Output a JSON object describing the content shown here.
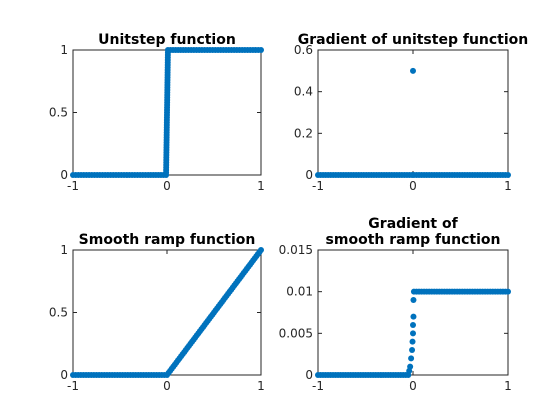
{
  "colors": {
    "series": "#0072BD",
    "axis": "#262626",
    "title": "#000000"
  },
  "chart_data": [
    {
      "id": "unitstep",
      "type": "scatter",
      "title_lines": [
        "Unitstep function"
      ],
      "xlim": [
        -1,
        1
      ],
      "ylim": [
        0,
        1
      ],
      "xticks": [
        -1,
        0,
        1
      ],
      "xtick_labels": [
        "-1",
        "0",
        "1"
      ],
      "yticks": [
        0,
        0.5,
        1
      ],
      "ytick_labels": [
        "0",
        "0.5",
        "1"
      ],
      "grid": false,
      "x": [
        -1,
        -0.8,
        -0.6,
        -0.4,
        -0.2,
        -0.01,
        0,
        0.01,
        0.2,
        0.4,
        0.6,
        0.8,
        1
      ],
      "y": [
        0,
        0,
        0,
        0,
        0,
        0,
        0.5,
        1,
        1,
        1,
        1,
        1,
        1
      ]
    },
    {
      "id": "unitstep-gradient",
      "type": "scatter",
      "title_lines": [
        "Gradient of unitstep function"
      ],
      "xlim": [
        -1,
        1
      ],
      "ylim": [
        0,
        0.6
      ],
      "xticks": [
        -1,
        0,
        1
      ],
      "xtick_labels": [
        "-1",
        "0",
        "1"
      ],
      "yticks": [
        0,
        0.2,
        0.4,
        0.6
      ],
      "ytick_labels": [
        "0",
        "0.2",
        "0.4",
        "0.6"
      ],
      "grid": false,
      "x": [
        -1,
        -0.5,
        -0.01,
        0,
        0.01,
        0.5,
        1
      ],
      "y": [
        0,
        0,
        0,
        0.5,
        0,
        0,
        0
      ]
    },
    {
      "id": "smooth-ramp",
      "type": "scatter",
      "title_lines": [
        "Smooth ramp function"
      ],
      "xlim": [
        -1,
        1
      ],
      "ylim": [
        0,
        1
      ],
      "xticks": [
        -1,
        0,
        1
      ],
      "xtick_labels": [
        "-1",
        "0",
        "1"
      ],
      "yticks": [
        0,
        0.5,
        1
      ],
      "ytick_labels": [
        "0",
        "0.5",
        "1"
      ],
      "grid": false,
      "x": [
        -1,
        -0.5,
        0,
        0.25,
        0.5,
        0.75,
        1
      ],
      "y": [
        0,
        0,
        0,
        0.25,
        0.5,
        0.75,
        1
      ]
    },
    {
      "id": "smooth-ramp-gradient",
      "type": "scatter",
      "title_lines": [
        "Gradient of",
        "smooth ramp function"
      ],
      "xlim": [
        -1,
        1
      ],
      "ylim": [
        0,
        0.015
      ],
      "xticks": [
        -1,
        0,
        1
      ],
      "xtick_labels": [
        "-1",
        "0",
        "1"
      ],
      "yticks": [
        0,
        0.005,
        0.01,
        0.015
      ],
      "ytick_labels": [
        "0",
        "0.005",
        "0.01",
        "0.015"
      ],
      "grid": false,
      "x": [
        -1,
        -0.5,
        -0.05,
        -0.04,
        -0.03,
        -0.02,
        -0.01,
        0,
        0.01,
        0.5,
        1
      ],
      "y": [
        0,
        0,
        0,
        0.0005,
        0.001,
        0.002,
        0.003,
        0.005,
        0.007,
        0.01,
        0.01
      ]
    }
  ]
}
